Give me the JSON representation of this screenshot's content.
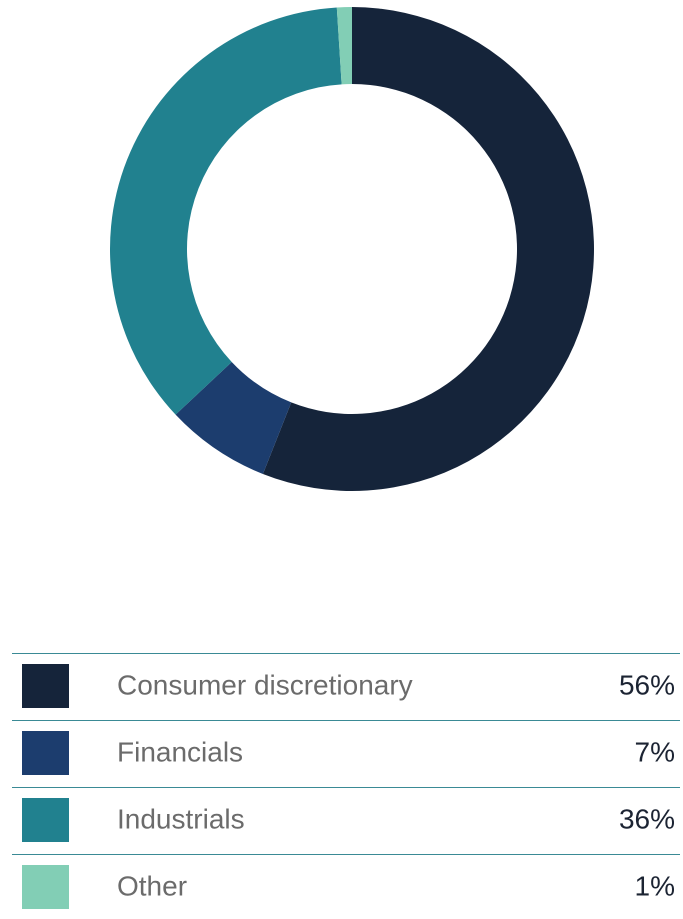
{
  "chart_data": {
    "type": "donut",
    "categories": [
      "Consumer discretionary",
      "Financials",
      "Industrials",
      "Other"
    ],
    "values": [
      56,
      7,
      36,
      1
    ],
    "value_labels": [
      "56%",
      "7%",
      "36%",
      "1%"
    ],
    "colors": [
      "#15243a",
      "#1c3d6e",
      "#21818f",
      "#82ceb5"
    ]
  }
}
